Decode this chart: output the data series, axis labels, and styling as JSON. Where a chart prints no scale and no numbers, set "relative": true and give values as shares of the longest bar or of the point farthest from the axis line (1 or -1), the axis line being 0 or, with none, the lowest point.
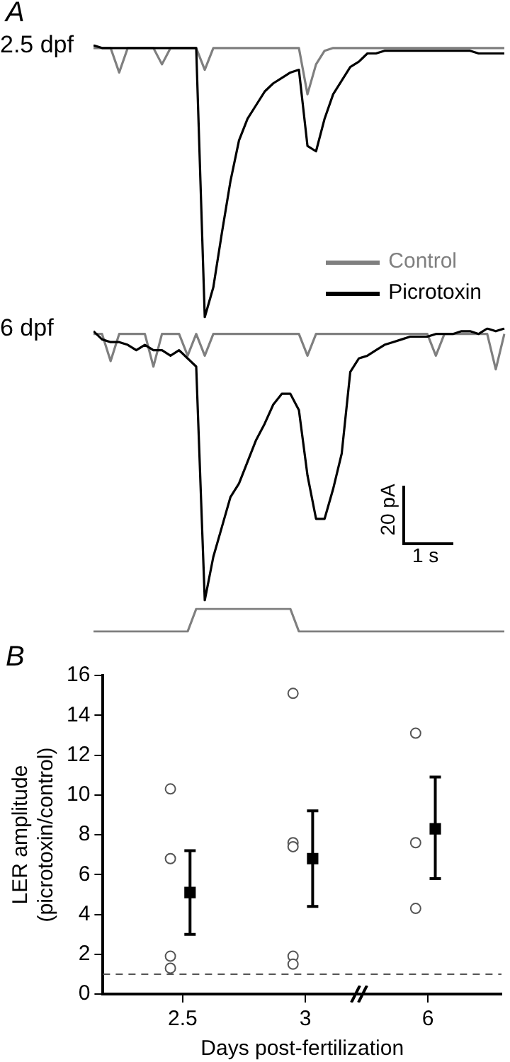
{
  "chart_data": [
    {
      "type": "line",
      "relative": true,
      "title": "2.5 dpf",
      "annotations": [
        "A"
      ],
      "legend": "bottom right",
      "marker": "none",
      "categories": [
        null,
        null,
        null,
        null,
        null,
        null,
        null,
        null,
        null,
        null,
        null,
        null,
        null,
        null,
        null,
        null,
        null,
        null,
        null,
        null,
        null,
        null,
        null,
        null,
        null,
        null,
        null,
        null,
        null,
        null,
        null,
        null,
        null,
        null,
        null,
        null,
        null,
        null,
        null,
        null,
        null,
        null,
        null,
        null,
        null,
        null,
        null,
        null,
        null
      ],
      "series": [
        {
          "name": "Control",
          "color": "#7f7f7f",
          "values": [
            0.99,
            0.99,
            0.99,
            0.9,
            0.99,
            0.99,
            0.99,
            0.99,
            0.93,
            0.99,
            0.99,
            0.99,
            0.99,
            0.91,
            0.99,
            0.99,
            0.99,
            0.99,
            0.99,
            0.99,
            0.99,
            0.99,
            0.99,
            0.99,
            0.99,
            0.82,
            0.93,
            0.98,
            0.99,
            0.99,
            0.99,
            0.99,
            0.99,
            0.99,
            0.99,
            0.99,
            0.99,
            0.99,
            0.99,
            0.99,
            0.99,
            0.99,
            0.99,
            0.99,
            0.99,
            0.99,
            0.99,
            0.99,
            0.99
          ]
        },
        {
          "name": "Picrotoxin",
          "color": "#000000",
          "values": [
            1.0,
            0.99,
            0.99,
            0.99,
            0.99,
            0.99,
            0.99,
            0.99,
            0.99,
            0.99,
            0.99,
            0.99,
            0.99,
            0.0,
            0.11,
            0.31,
            0.5,
            0.65,
            0.73,
            0.78,
            0.83,
            0.86,
            0.88,
            0.9,
            0.91,
            0.63,
            0.61,
            0.73,
            0.82,
            0.87,
            0.92,
            0.94,
            0.97,
            0.97,
            0.98,
            0.98,
            0.98,
            0.98,
            0.98,
            0.98,
            0.98,
            0.98,
            0.98,
            0.98,
            0.98,
            0.97,
            0.97,
            0.97,
            0.97
          ]
        }
      ]
    },
    {
      "type": "line",
      "relative": true,
      "title": "6 dpf",
      "annotations": [
        "20 pA",
        "1 s"
      ],
      "marker": "none",
      "categories": [
        null,
        null,
        null,
        null,
        null,
        null,
        null,
        null,
        null,
        null,
        null,
        null,
        null,
        null,
        null,
        null,
        null,
        null,
        null,
        null,
        null,
        null,
        null,
        null,
        null,
        null,
        null,
        null,
        null,
        null,
        null,
        null,
        null,
        null,
        null,
        null,
        null,
        null,
        null,
        null,
        null,
        null,
        null,
        null,
        null,
        null,
        null,
        null,
        null
      ],
      "series": [
        {
          "color": "#7f7f7f",
          "values": [
            0.98,
            0.98,
            0.88,
            0.98,
            0.98,
            0.98,
            0.98,
            0.86,
            0.98,
            0.98,
            0.98,
            0.9,
            0.98,
            0.9,
            0.98,
            0.98,
            0.98,
            0.98,
            0.98,
            0.98,
            0.98,
            0.98,
            0.98,
            0.98,
            0.98,
            0.9,
            0.98,
            0.98,
            0.98,
            0.98,
            0.98,
            0.98,
            0.98,
            0.98,
            0.98,
            0.98,
            0.98,
            0.98,
            0.98,
            0.98,
            0.9,
            0.98,
            0.98,
            0.98,
            0.98,
            0.98,
            0.98,
            0.85,
            0.98
          ]
        },
        {
          "color": "#000000",
          "values": [
            0.99,
            0.96,
            0.95,
            0.95,
            0.94,
            0.92,
            0.94,
            0.92,
            0.92,
            0.9,
            0.92,
            0.89,
            0.86,
            0.0,
            0.16,
            0.27,
            0.38,
            0.43,
            0.51,
            0.59,
            0.65,
            0.72,
            0.76,
            0.76,
            0.7,
            0.46,
            0.3,
            0.3,
            0.41,
            0.54,
            0.84,
            0.89,
            0.9,
            0.92,
            0.94,
            0.95,
            0.96,
            0.97,
            0.97,
            0.97,
            0.98,
            0.98,
            0.98,
            0.99,
            0.99,
            0.98,
            1.0,
            0.99,
            1.0
          ]
        }
      ]
    },
    {
      "type": "line",
      "relative": true,
      "marker": "none",
      "categories": [
        null,
        null,
        null,
        null,
        null,
        null,
        null,
        null,
        null,
        null,
        null,
        null,
        null,
        null,
        null,
        null,
        null,
        null,
        null,
        null,
        null,
        null,
        null,
        null,
        null,
        null,
        null,
        null,
        null,
        null,
        null,
        null,
        null,
        null,
        null,
        null,
        null,
        null,
        null,
        null,
        null,
        null,
        null,
        null,
        null,
        null,
        null,
        null,
        null
      ],
      "series": [
        {
          "color": "#7f7f7f",
          "values": [
            0,
            0,
            0,
            0,
            0,
            0,
            0,
            0,
            0,
            0,
            0,
            0,
            1,
            1,
            1,
            1,
            1,
            1,
            1,
            1,
            1,
            1,
            1,
            1,
            0,
            0,
            0,
            0,
            0,
            0,
            0,
            0,
            0,
            0,
            0,
            0,
            0,
            0,
            0,
            0,
            0,
            0,
            0,
            0,
            0,
            0,
            0,
            0,
            0
          ]
        }
      ]
    },
    {
      "type": "scatter",
      "annotations": [
        "B"
      ],
      "xlabel": "Days post-fertilization",
      "ylabel": "LER amplitude\n(picrotoxin/control)",
      "grid": false,
      "categories": [
        "2.5",
        "3",
        "6"
      ],
      "ylim": [
        0,
        16
      ],
      "yticks": [
        0,
        2,
        4,
        6,
        8,
        10,
        12,
        14,
        16
      ],
      "ref_lines": [
        {
          "axis": "y",
          "value": 1,
          "color": "#555555",
          "line_style": "dashed"
        }
      ],
      "series": [
        {
          "color": "#555555",
          "marker": "circle",
          "x": [
            "2.5",
            "2.5",
            "2.5",
            "2.5",
            "3",
            "3",
            "3",
            "3",
            "3",
            "6",
            "6",
            "6"
          ],
          "values": [
            10.3,
            6.8,
            1.9,
            1.3,
            15.1,
            7.6,
            7.4,
            1.9,
            1.5,
            13.1,
            7.6,
            4.3
          ]
        },
        {
          "color": "#000000",
          "marker": "square",
          "x": [
            "2.5",
            "3",
            "6"
          ],
          "values": [
            5.1,
            6.8,
            8.3
          ],
          "errors": [
            [
              3.0,
              7.2
            ],
            [
              4.4,
              9.2
            ],
            [
              5.8,
              10.9
            ]
          ]
        }
      ]
    }
  ]
}
